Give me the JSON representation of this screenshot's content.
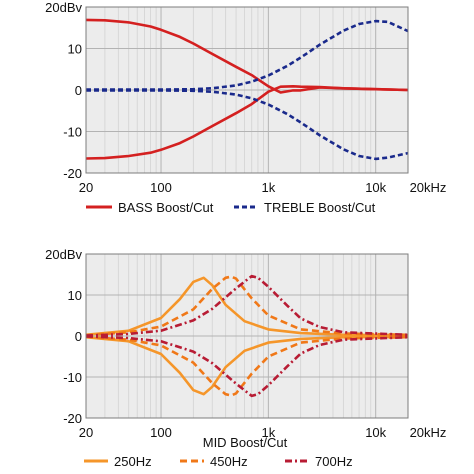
{
  "chart_data": [
    {
      "type": "line",
      "x_scale": "log",
      "xlim": [
        20,
        20000
      ],
      "ylim": [
        -20,
        20
      ],
      "grid": true,
      "y_unit_label": "20dBv",
      "xticks": [
        {
          "value": 20,
          "label": "20"
        },
        {
          "value": 100,
          "label": "100"
        },
        {
          "value": 1000,
          "label": "1k"
        },
        {
          "value": 10000,
          "label": "10k"
        },
        {
          "value": 20000,
          "label": "20kHz"
        }
      ],
      "yticks": [
        {
          "value": 10,
          "label": "10"
        },
        {
          "value": 0,
          "label": "0"
        },
        {
          "value": -10,
          "label": "-10"
        },
        {
          "value": -20,
          "label": "-20"
        }
      ],
      "legend": {
        "placement": "below",
        "entries": [
          "BASS Boost/Cut",
          "TREBLE Boost/Cut"
        ]
      },
      "series": [
        {
          "name": "BASS Boost/Cut",
          "group": 0,
          "color": "#d42020",
          "dash": "solid",
          "x": [
            20,
            30,
            50,
            80,
            100,
            150,
            200,
            300,
            500,
            700,
            1000,
            1300,
            1700,
            2000,
            3000,
            5000,
            10000,
            20000
          ],
          "y": [
            16.9,
            16.8,
            16.3,
            15.3,
            14.5,
            12.8,
            11.2,
            8.7,
            5.6,
            3.6,
            0.9,
            -0.6,
            -0.1,
            -0.1,
            0.6,
            0.4,
            0.2,
            0.0
          ]
        },
        {
          "name": "",
          "group": 0,
          "color": "#d42020",
          "dash": "solid",
          "x": [
            20,
            30,
            50,
            80,
            100,
            150,
            200,
            300,
            500,
            700,
            1000,
            1300,
            1700,
            2000,
            3000,
            5000,
            10000,
            20000
          ],
          "y": [
            -16.5,
            -16.4,
            -15.9,
            -15.1,
            -14.4,
            -12.8,
            -11.2,
            -8.7,
            -5.6,
            -3.4,
            -0.4,
            0.8,
            0.9,
            0.8,
            0.7,
            0.4,
            0.2,
            0.0
          ]
        },
        {
          "name": "TREBLE Boost/Cut",
          "group": 1,
          "color": "#1a2a8c",
          "dash": "5,3",
          "x": [
            20,
            100,
            200,
            300,
            500,
            700,
            1000,
            1500,
            2000,
            3000,
            5000,
            7000,
            10000,
            13000,
            20000
          ],
          "y": [
            0.1,
            0.1,
            0.2,
            0.4,
            1.1,
            2.0,
            3.5,
            5.8,
            7.8,
            10.9,
            14.3,
            15.9,
            16.6,
            16.4,
            14.2
          ]
        },
        {
          "name": "",
          "group": 1,
          "color": "#1a2a8c",
          "dash": "5,3",
          "x": [
            20,
            100,
            200,
            300,
            500,
            700,
            1000,
            1500,
            2000,
            3000,
            5000,
            7000,
            10000,
            13000,
            20000
          ],
          "y": [
            -0.1,
            -0.1,
            -0.2,
            -0.4,
            -1.1,
            -2.0,
            -3.5,
            -5.8,
            -7.8,
            -10.9,
            -14.3,
            -15.9,
            -16.6,
            -16.3,
            -15.2
          ]
        }
      ]
    },
    {
      "type": "line",
      "x_scale": "log",
      "xlim": [
        20,
        20000
      ],
      "ylim": [
        -20,
        20
      ],
      "grid": true,
      "y_unit_label": "20dBv",
      "xlabel": "MID Boost/Cut",
      "xticks": [
        {
          "value": 20,
          "label": "20"
        },
        {
          "value": 100,
          "label": "100"
        },
        {
          "value": 1000,
          "label": "1k"
        },
        {
          "value": 10000,
          "label": "10k"
        },
        {
          "value": 20000,
          "label": "20kHz"
        }
      ],
      "yticks": [
        {
          "value": 10,
          "label": "10"
        },
        {
          "value": 0,
          "label": "0"
        },
        {
          "value": -10,
          "label": "-10"
        },
        {
          "value": -20,
          "label": "-20"
        }
      ],
      "legend": {
        "placement": "below",
        "entries": [
          "250Hz",
          "450Hz",
          "700Hz"
        ]
      },
      "series": [
        {
          "name": "250Hz",
          "group": 0,
          "color": "#f5962a",
          "dash": "solid",
          "x": [
            20,
            50,
            100,
            150,
            200,
            250,
            300,
            400,
            600,
            1000,
            2000,
            5000,
            20000
          ],
          "y": [
            0.3,
            1.3,
            4.4,
            9.0,
            13.2,
            14.2,
            12.4,
            7.6,
            3.6,
            1.6,
            0.7,
            0.3,
            0.2
          ]
        },
        {
          "name": "",
          "group": 0,
          "color": "#f5962a",
          "dash": "solid",
          "x": [
            20,
            50,
            100,
            150,
            200,
            250,
            300,
            400,
            600,
            1000,
            2000,
            5000,
            20000
          ],
          "y": [
            -0.3,
            -1.3,
            -4.4,
            -9.0,
            -13.2,
            -14.2,
            -12.4,
            -7.6,
            -3.6,
            -1.6,
            -0.7,
            -0.3,
            -0.2
          ]
        },
        {
          "name": "450Hz",
          "group": 1,
          "color": "#f07818",
          "dash": "7,4",
          "x": [
            20,
            50,
            100,
            200,
            300,
            400,
            450,
            500,
            700,
            1000,
            2000,
            5000,
            20000
          ],
          "y": [
            0.2,
            0.9,
            2.3,
            6.5,
            11.5,
            14.2,
            14.5,
            14.0,
            9.2,
            5.0,
            1.6,
            0.6,
            0.3
          ]
        },
        {
          "name": "",
          "group": 1,
          "color": "#f07818",
          "dash": "7,4",
          "x": [
            20,
            50,
            100,
            200,
            300,
            400,
            450,
            500,
            700,
            1000,
            2000,
            5000,
            20000
          ],
          "y": [
            -0.2,
            -0.9,
            -2.3,
            -6.5,
            -11.5,
            -14.2,
            -14.5,
            -14.0,
            -9.2,
            -5.0,
            -1.6,
            -0.6,
            -0.3
          ]
        },
        {
          "name": "700Hz",
          "group": 2,
          "color": "#b81c34",
          "dash": "7,3,2,3",
          "x": [
            20,
            50,
            100,
            200,
            300,
            500,
            700,
            800,
            1000,
            1500,
            2000,
            3000,
            5000,
            20000
          ],
          "y": [
            0.1,
            0.5,
            1.3,
            3.8,
            6.6,
            11.6,
            14.6,
            14.2,
            12.0,
            7.4,
            4.3,
            2.2,
            0.9,
            0.3
          ]
        },
        {
          "name": "",
          "group": 2,
          "color": "#b81c34",
          "dash": "7,3,2,3",
          "x": [
            20,
            50,
            100,
            200,
            300,
            500,
            700,
            800,
            1000,
            1500,
            2000,
            3000,
            5000,
            20000
          ],
          "y": [
            -0.1,
            -0.5,
            -1.3,
            -3.8,
            -6.6,
            -11.6,
            -14.6,
            -14.2,
            -12.0,
            -7.4,
            -4.3,
            -2.2,
            -0.9,
            -0.3
          ]
        }
      ]
    }
  ]
}
